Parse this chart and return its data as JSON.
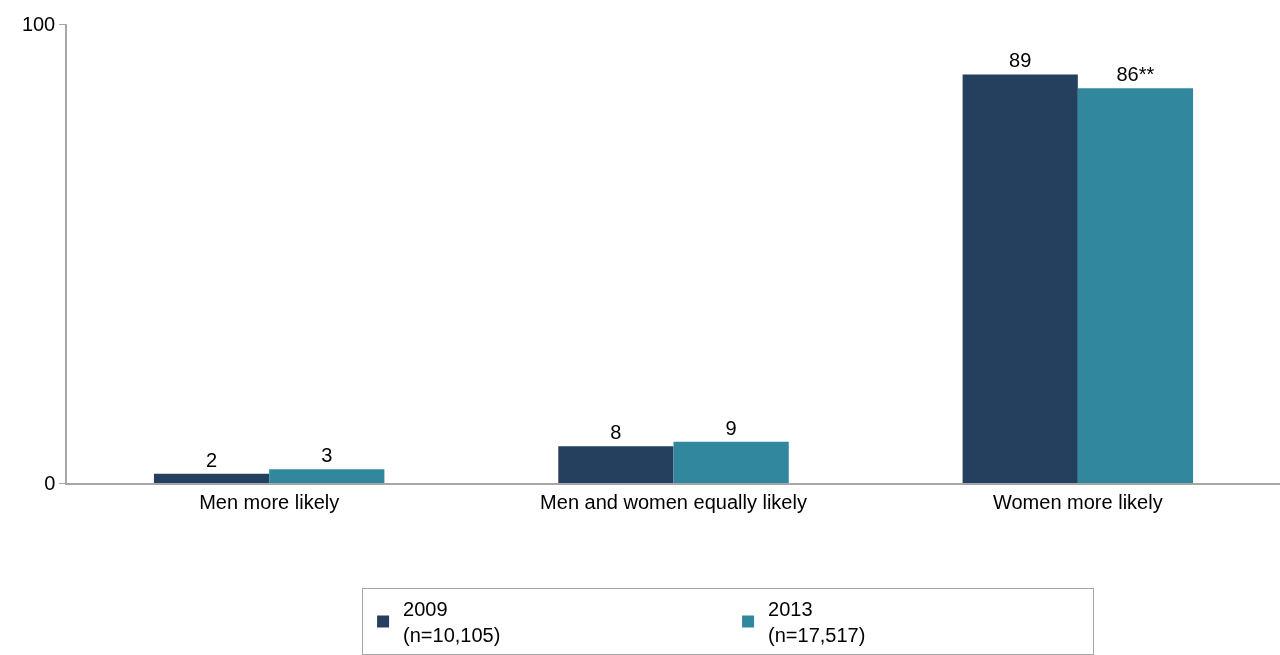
{
  "chart_data": {
    "type": "bar",
    "categories": [
      "Men more likely",
      "Men and women equally likely",
      "Women more likely"
    ],
    "series": [
      {
        "name": "2009\n(n=10,105)",
        "color": "#253f5f",
        "values": [
          2,
          8,
          89
        ],
        "value_labels": [
          "2",
          "8",
          "89"
        ]
      },
      {
        "name": "2013\n(n=17,517)",
        "color": "#31879e",
        "values": [
          3,
          9,
          86
        ],
        "value_labels": [
          "3",
          "9",
          "86**"
        ]
      }
    ],
    "ylim": [
      0,
      100
    ],
    "yticks": [
      0,
      100
    ],
    "legend": "bottom"
  }
}
